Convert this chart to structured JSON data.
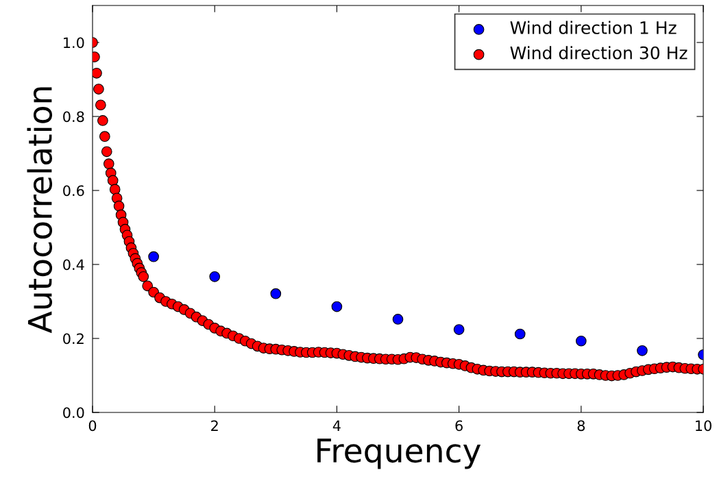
{
  "chart_data": {
    "type": "scatter",
    "xlabel": "Frequency",
    "ylabel": "Autocorrelation",
    "xlim": [
      0,
      10
    ],
    "ylim": [
      0,
      1.1
    ],
    "xticks": [
      0,
      2,
      4,
      6,
      8,
      10
    ],
    "yticks": [
      {
        "value": 0,
        "label": "0.0"
      },
      {
        "value": 0.2,
        "label": "0.2"
      },
      {
        "value": 0.4,
        "label": "0.4"
      },
      {
        "value": 0.6,
        "label": "0.6"
      },
      {
        "value": 0.8,
        "label": "0.8"
      },
      {
        "value": 1.0,
        "label": "1.0"
      }
    ],
    "grid": false,
    "legend": "top right",
    "marker": "circle",
    "series": [
      {
        "name": "Wind direction 1 Hz",
        "color": "#0000ff",
        "x": [
          1,
          2,
          3,
          4,
          5,
          6,
          7,
          8,
          9,
          10
        ],
        "values": [
          0.421,
          0.367,
          0.321,
          0.286,
          0.252,
          0.224,
          0.212,
          0.193,
          0.167,
          0.156
        ]
      },
      {
        "name": "Wind direction 30 Hz",
        "color": "#ff0000",
        "x": [
          0,
          0.033,
          0.067,
          0.1,
          0.133,
          0.167,
          0.2,
          0.233,
          0.267,
          0.3,
          0.333,
          0.367,
          0.4,
          0.433,
          0.467,
          0.5,
          0.533,
          0.567,
          0.6,
          0.633,
          0.667,
          0.7,
          0.733,
          0.767,
          0.8,
          0.833,
          0.9,
          1.0,
          1.1,
          1.2,
          1.3,
          1.4,
          1.5,
          1.6,
          1.7,
          1.8,
          1.9,
          2.0,
          2.1,
          2.2,
          2.3,
          2.4,
          2.5,
          2.6,
          2.7,
          2.8,
          2.9,
          3.0,
          3.1,
          3.2,
          3.3,
          3.4,
          3.5,
          3.6,
          3.7,
          3.8,
          3.9,
          4.0,
          4.1,
          4.2,
          4.3,
          4.4,
          4.5,
          4.6,
          4.7,
          4.8,
          4.9,
          5.0,
          5.1,
          5.2,
          5.3,
          5.4,
          5.5,
          5.6,
          5.7,
          5.8,
          5.9,
          6.0,
          6.1,
          6.2,
          6.3,
          6.4,
          6.5,
          6.6,
          6.7,
          6.8,
          6.9,
          7.0,
          7.1,
          7.2,
          7.3,
          7.4,
          7.5,
          7.6,
          7.7,
          7.8,
          7.9,
          8.0,
          8.1,
          8.2,
          8.3,
          8.4,
          8.5,
          8.6,
          8.7,
          8.8,
          8.9,
          9.0,
          9.1,
          9.2,
          9.3,
          9.4,
          9.5,
          9.6,
          9.7,
          9.8,
          9.9,
          10.0
        ],
        "values": [
          1.0,
          0.961,
          0.917,
          0.874,
          0.831,
          0.789,
          0.746,
          0.705,
          0.672,
          0.647,
          0.627,
          0.603,
          0.579,
          0.558,
          0.534,
          0.514,
          0.495,
          0.479,
          0.462,
          0.445,
          0.43,
          0.416,
          0.403,
          0.39,
          0.378,
          0.367,
          0.342,
          0.325,
          0.31,
          0.3,
          0.293,
          0.286,
          0.278,
          0.268,
          0.258,
          0.248,
          0.238,
          0.228,
          0.22,
          0.214,
          0.207,
          0.2,
          0.193,
          0.186,
          0.179,
          0.174,
          0.172,
          0.171,
          0.169,
          0.167,
          0.165,
          0.163,
          0.162,
          0.162,
          0.163,
          0.162,
          0.161,
          0.16,
          0.157,
          0.154,
          0.151,
          0.149,
          0.147,
          0.146,
          0.145,
          0.144,
          0.144,
          0.143,
          0.145,
          0.149,
          0.148,
          0.144,
          0.141,
          0.139,
          0.136,
          0.134,
          0.132,
          0.13,
          0.126,
          0.121,
          0.117,
          0.114,
          0.112,
          0.111,
          0.11,
          0.11,
          0.11,
          0.109,
          0.109,
          0.109,
          0.108,
          0.107,
          0.106,
          0.106,
          0.105,
          0.105,
          0.105,
          0.104,
          0.104,
          0.104,
          0.102,
          0.1,
          0.099,
          0.1,
          0.102,
          0.106,
          0.11,
          0.113,
          0.116,
          0.118,
          0.12,
          0.122,
          0.123,
          0.121,
          0.119,
          0.118,
          0.117,
          0.117
        ]
      }
    ]
  }
}
